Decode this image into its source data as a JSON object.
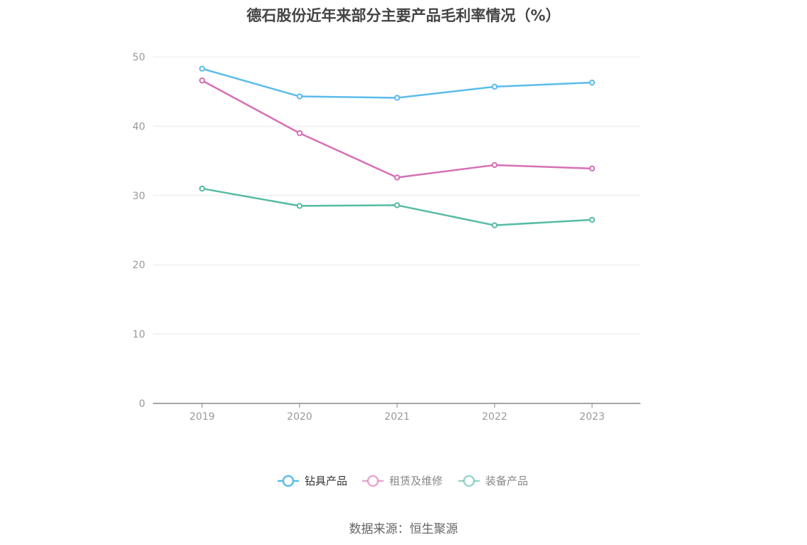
{
  "chart_data": {
    "type": "line",
    "title": "德石股份近年来部分主要产品毛利率情况（%）",
    "categories": [
      "2019",
      "2020",
      "2021",
      "2022",
      "2023"
    ],
    "ylim": [
      0,
      50
    ],
    "yticks": [
      0,
      10,
      20,
      30,
      40,
      50
    ],
    "grid": true,
    "legend_position": "bottom",
    "series": [
      {
        "name": "钻具产品",
        "color": "#5bbcec",
        "values": [
          48.3,
          44.3,
          44.1,
          45.7,
          46.3
        ]
      },
      {
        "name": "租赁及维修",
        "color": "#d670b4",
        "values": [
          46.6,
          39.0,
          32.6,
          34.4,
          33.9
        ]
      },
      {
        "name": "装备产品",
        "color": "#57bba4",
        "values": [
          31.0,
          28.5,
          28.6,
          25.7,
          26.5
        ]
      }
    ]
  },
  "source": "数据来源：恒生聚源"
}
